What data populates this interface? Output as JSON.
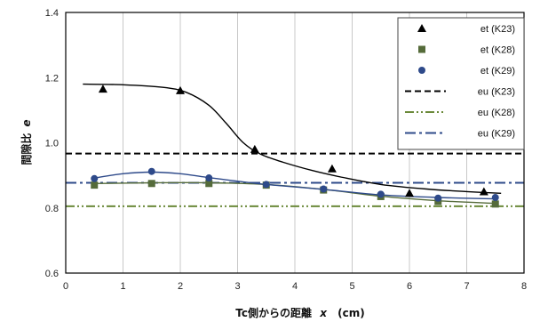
{
  "chart_data": {
    "type": "scatter",
    "xlabel": "Tc側からの距離",
    "xlabel_var": "x",
    "xlabel_unit": "(cm)",
    "ylabel": "間隙比",
    "ylabel_var": "e",
    "xlim": [
      0,
      8
    ],
    "ylim": [
      0.6,
      1.4
    ],
    "xticks": [
      "0",
      "1",
      "2",
      "3",
      "4",
      "5",
      "6",
      "7",
      "8"
    ],
    "yticks": [
      "0.6",
      "0.8",
      "1.0",
      "1.2",
      "1.4"
    ],
    "grid": "vertical",
    "legend_position": "top-right",
    "series": [
      {
        "name": "et (K23)",
        "marker": "triangle",
        "color": "#000000",
        "x": [
          0.65,
          2.0,
          3.3,
          4.65,
          6.0,
          7.3
        ],
        "y": [
          1.165,
          1.16,
          0.98,
          0.92,
          0.845,
          0.85
        ],
        "curve_x": [
          0.3,
          1.0,
          1.7,
          2.1,
          2.5,
          2.8,
          3.1,
          3.4,
          3.8,
          4.3,
          4.8,
          5.5,
          6.3,
          7.0,
          7.6
        ],
        "curve_y": [
          1.18,
          1.178,
          1.17,
          1.155,
          1.115,
          1.06,
          1.0,
          0.965,
          0.94,
          0.915,
          0.895,
          0.872,
          0.858,
          0.85,
          0.845
        ]
      },
      {
        "name": "et (K28)",
        "marker": "square",
        "color": "#556b3a",
        "x": [
          0.5,
          1.5,
          2.5,
          3.5,
          4.5,
          5.5,
          6.5,
          7.5
        ],
        "y": [
          0.87,
          0.875,
          0.875,
          0.87,
          0.855,
          0.835,
          0.82,
          0.812
        ],
        "curve_x": [
          0.5,
          1.5,
          2.5,
          3.5,
          4.5,
          5.5,
          6.5,
          7.5
        ],
        "curve_y": [
          0.875,
          0.877,
          0.877,
          0.872,
          0.857,
          0.836,
          0.822,
          0.814
        ]
      },
      {
        "name": "et (K29)",
        "marker": "circle",
        "color": "#2e4a8a",
        "x": [
          0.5,
          1.5,
          2.5,
          3.5,
          4.5,
          5.5,
          6.5,
          7.5
        ],
        "y": [
          0.89,
          0.912,
          0.892,
          0.872,
          0.858,
          0.842,
          0.83,
          0.832
        ],
        "curve_x": [
          0.5,
          1.0,
          1.5,
          2.0,
          2.5,
          3.0,
          3.5,
          4.5,
          5.5,
          6.5,
          7.5
        ],
        "curve_y": [
          0.892,
          0.905,
          0.91,
          0.905,
          0.893,
          0.882,
          0.872,
          0.857,
          0.84,
          0.832,
          0.828
        ]
      },
      {
        "name": "eu (K23)",
        "style": "dashed",
        "color": "#000000",
        "value": 0.967
      },
      {
        "name": "eu (K28)",
        "style": "dash-dot-dot",
        "color": "#6b8a3a",
        "value": 0.805
      },
      {
        "name": "eu (K29)",
        "style": "dash-dot",
        "color": "#2e4a8a",
        "value": 0.877
      }
    ]
  }
}
